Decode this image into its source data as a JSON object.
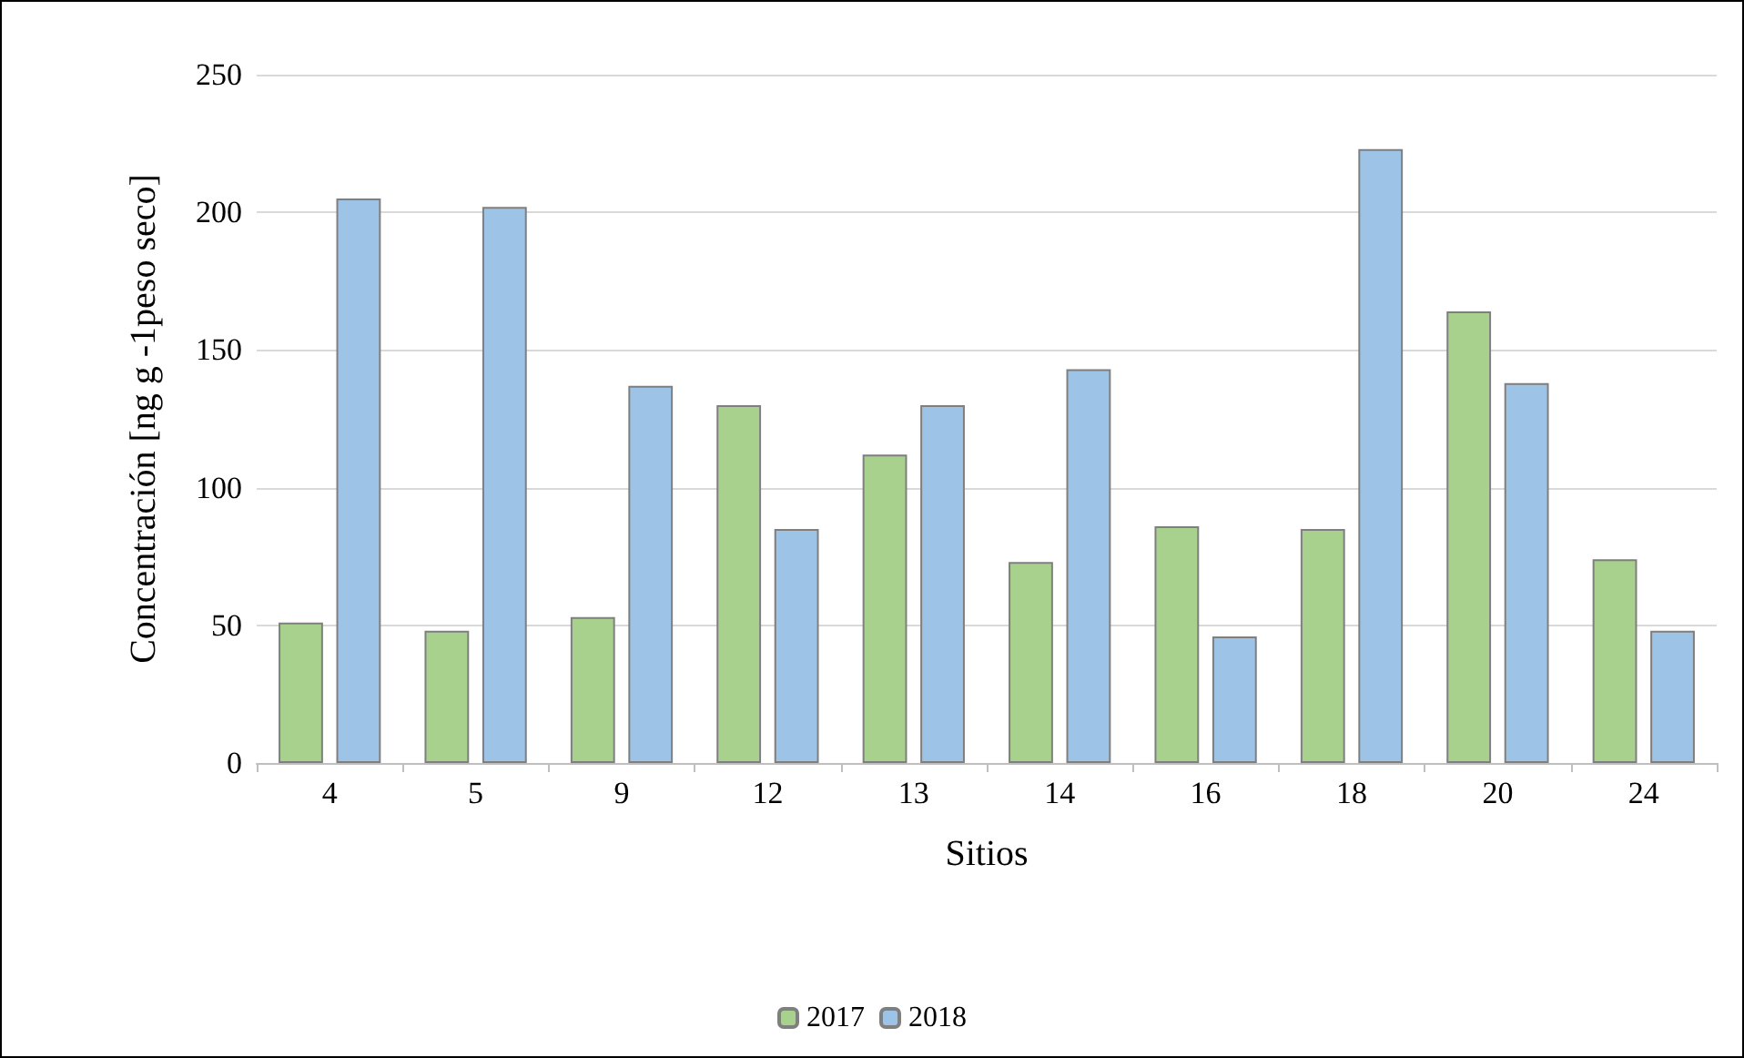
{
  "chart_data": {
    "type": "bar",
    "xlabel": "Sitios",
    "ylabel": "Concentración [ng g -1peso seco]",
    "categories": [
      "4",
      "5",
      "9",
      "12",
      "13",
      "14",
      "16",
      "18",
      "20",
      "24"
    ],
    "series": [
      {
        "name": "2017",
        "color": "#a9d18e",
        "values": [
          51,
          48,
          53,
          130,
          112,
          73,
          86,
          85,
          164,
          74
        ]
      },
      {
        "name": "2018",
        "color": "#9dc3e6",
        "values": [
          205,
          202,
          137,
          85,
          130,
          143,
          46,
          223,
          138,
          48
        ]
      }
    ],
    "ylim": [
      0,
      250
    ],
    "yticks": [
      0,
      50,
      100,
      150,
      200,
      250
    ],
    "grid": "y",
    "legend": "bottom"
  }
}
